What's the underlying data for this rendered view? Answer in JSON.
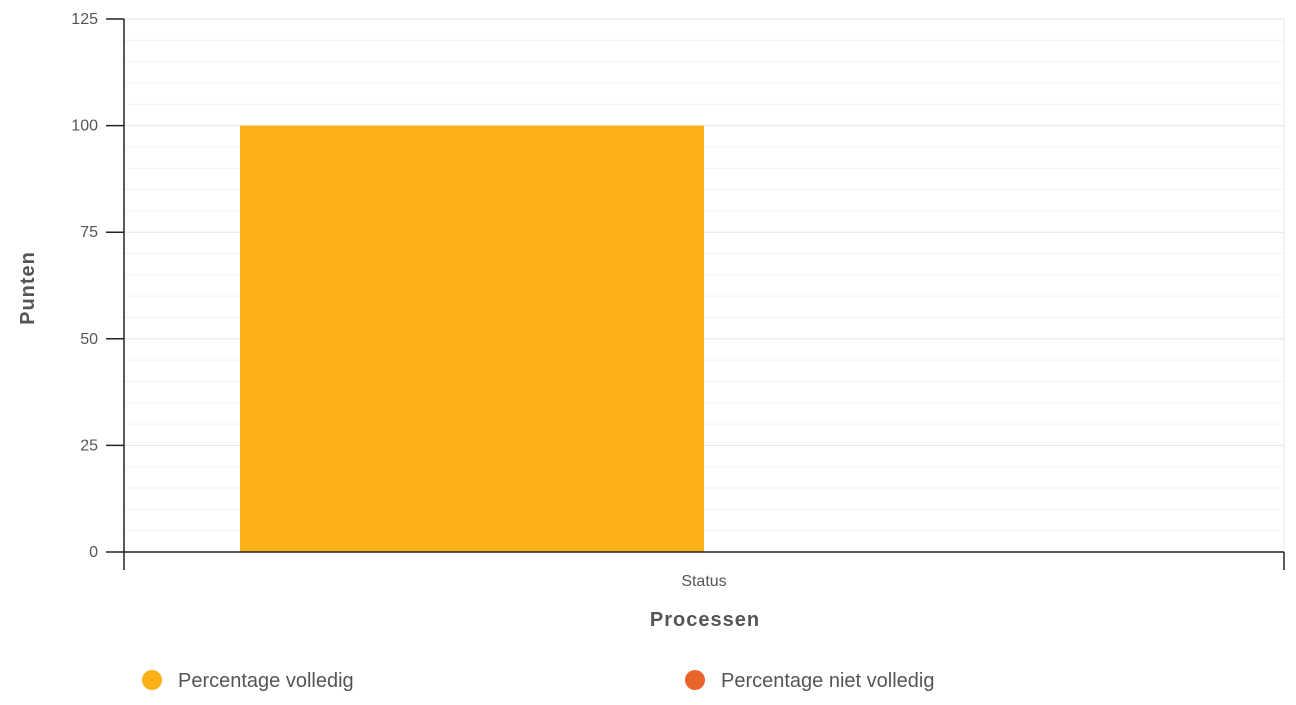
{
  "chart_data": {
    "type": "bar",
    "categories": [
      "Status"
    ],
    "series": [
      {
        "name": "Percentage volledig",
        "values": [
          100
        ],
        "color": "#fbb116"
      },
      {
        "name": "Percentage niet volledig",
        "values": [
          0
        ],
        "color": "#e8652b"
      }
    ],
    "xlabel": "Processen",
    "ylabel": "Punten",
    "ylim": [
      0,
      125
    ],
    "yticks": [
      0,
      25,
      50,
      75,
      100,
      125
    ],
    "grid": true,
    "legend_position": "bottom"
  },
  "colors": {
    "axis": "#222222",
    "grid_major": "#e6e6e6",
    "grid_minor": "#f2f2f2",
    "text": "#555555"
  }
}
